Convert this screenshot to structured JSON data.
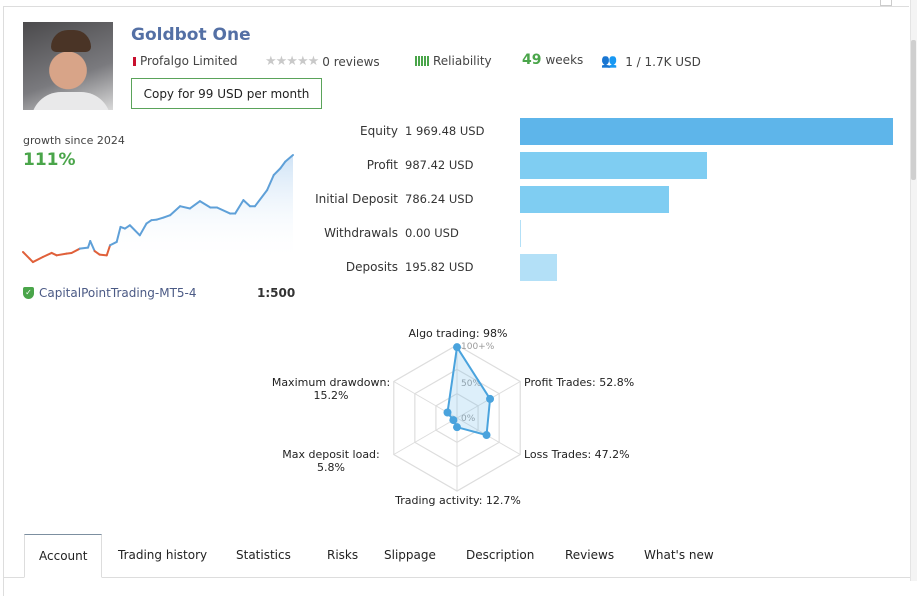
{
  "header": {
    "title": "Goldbot One",
    "provider": "Profalgo Limited",
    "reviews": "0 reviews",
    "reliability_label": "Reliability",
    "weeks_value": "49",
    "weeks_label": "weeks",
    "subscribers": "1 / 1.7K USD",
    "copy_button": "Copy for 99 USD per month"
  },
  "growth": {
    "label": "growth since 2024",
    "value": "111%",
    "server": "CapitalPointTrading-MT5-4",
    "leverage": "1:500"
  },
  "balances": [
    {
      "label": "Equity",
      "value": "1 969.48 USD",
      "amount": 1969.48,
      "color": "#5eb5ea"
    },
    {
      "label": "Profit",
      "value": "987.42 USD",
      "amount": 987.42,
      "color": "#7fcdf2"
    },
    {
      "label": "Initial Deposit",
      "value": "786.24 USD",
      "amount": 786.24,
      "color": "#7fcdf2"
    },
    {
      "label": "Withdrawals",
      "value": "0.00 USD",
      "amount": 0,
      "color": "#b3e0f7"
    },
    {
      "label": "Deposits",
      "value": "195.82 USD",
      "amount": 195.82,
      "color": "#b3e0f7"
    }
  ],
  "chart_data": [
    {
      "type": "line",
      "title": "growth since 2024",
      "x": [
        0,
        1.2,
        1.8,
        3.6,
        5.2,
        6.1,
        7.9,
        8.8,
        10.3,
        11.8,
        12.2,
        13,
        13.9,
        15.2,
        15.8,
        17,
        17.7,
        18.5,
        19.4,
        21.2,
        22.4,
        23.3,
        24.3,
        25.5,
        26.7,
        28.5,
        30.3,
        32.1,
        34,
        35.2,
        37.6,
        38.5,
        40,
        41.2,
        42.1,
        44.3,
        45.5,
        46.7,
        47.6,
        49
      ],
      "y": [
        0,
        -7.7,
        -11.5,
        -5.7,
        -1.1,
        -3.8,
        -1.9,
        -1.1,
        3.8,
        5,
        12.6,
        1.1,
        -3,
        -3.8,
        7.7,
        11.5,
        28.7,
        26.8,
        30.6,
        19.1,
        32.5,
        36.4,
        37.1,
        39.4,
        42.1,
        52.4,
        49.8,
        58.2,
        50.9,
        50.9,
        44,
        44,
        59.4,
        52.4,
        52.4,
        70.8,
        88,
        95.7,
        103.4,
        111
      ],
      "ylim": [
        -15,
        115
      ],
      "colors": {
        "up": "#5fa0d8",
        "down": "#e0603a"
      }
    },
    {
      "type": "radar",
      "ticks": [
        "100+%",
        "50%",
        "0%"
      ],
      "axes": [
        {
          "label": "Algo trading: 98%",
          "value": 98
        },
        {
          "label": "Profit Trades: 52.8%",
          "value": 52.8
        },
        {
          "label": "Loss Trades: 47.2%",
          "value": 47.2
        },
        {
          "label": "Trading activity: 12.7%",
          "value": 12.7
        },
        {
          "label": "Max deposit load:",
          "sub": "5.8%",
          "value": 5.8
        },
        {
          "label": "Maximum drawdown:",
          "sub": "15.2%",
          "value": 15.2
        }
      ]
    }
  ],
  "tabs": [
    "Account",
    "Trading history",
    "Statistics",
    "Risks",
    "Slippage",
    "Description",
    "Reviews",
    "What's new"
  ]
}
